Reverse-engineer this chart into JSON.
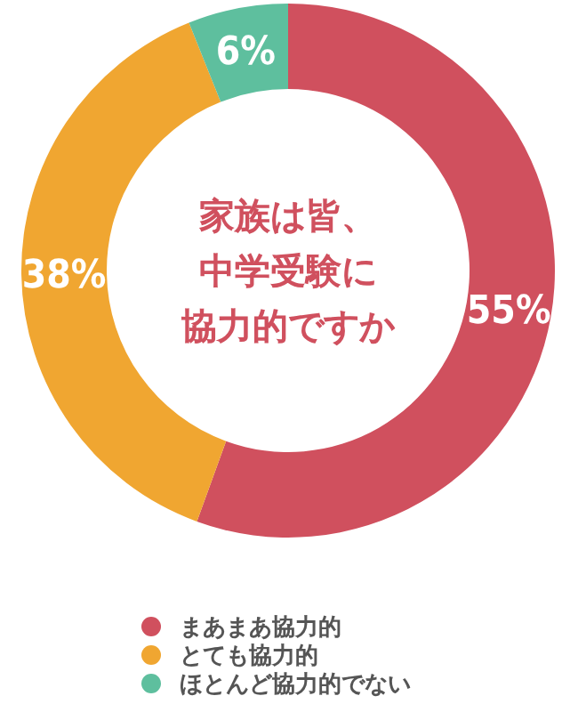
{
  "chart_data": {
    "type": "donut",
    "title": "家族は皆、中学受験に協力的ですか",
    "categories": [
      "まあまあ協力的",
      "とても協力的",
      "ほとんど協力的でない"
    ],
    "values": [
      55,
      38,
      6
    ],
    "colors": [
      "#d0505e",
      "#f0a631",
      "#5ebf9e"
    ],
    "value_labels": [
      "55%",
      "38%",
      "6%"
    ],
    "legend": "bottom"
  }
}
